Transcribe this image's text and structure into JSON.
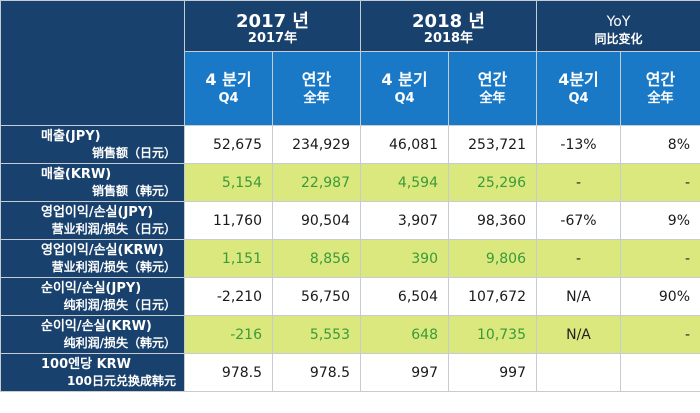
{
  "header": {
    "y2017_kr": "2017 년",
    "y2017_cn": "2017年",
    "y2018_kr": "2018 년",
    "y2018_cn": "2018年",
    "yoy_en": "YoY",
    "yoy_cn": "同比变化",
    "cols": [
      {
        "kr": "4 분기",
        "sub": "Q4"
      },
      {
        "kr": "연간",
        "sub": "全年"
      },
      {
        "kr": "4 분기",
        "sub": "Q4"
      },
      {
        "kr": "연간",
        "sub": "全年"
      },
      {
        "kr": "4분기",
        "sub": "Q4"
      },
      {
        "kr": "연간",
        "sub": "全年"
      }
    ]
  },
  "rows": [
    {
      "kr": "매출(JPY)",
      "cn": "销售额（日元）",
      "cells": [
        "52,675",
        "234,929",
        "46,081",
        "253,721",
        "-13%",
        "8%"
      ]
    },
    {
      "kr": "매출(KRW)",
      "cn": "销售额（韩元）",
      "cells": [
        "5,154",
        "22,987",
        "4,594",
        "25,296",
        "-",
        "-"
      ]
    },
    {
      "kr": "영업이익/손실(JPY)",
      "cn": "营业利润/损失（日元）",
      "cells": [
        "11,760",
        "90,504",
        "3,907",
        "98,360",
        "-67%",
        "9%"
      ]
    },
    {
      "kr": "영업이익/손실(KRW)",
      "cn": "营业利润/损失（韩元）",
      "cells": [
        "1,151",
        "8,856",
        "390",
        "9,806",
        "-",
        "-"
      ]
    },
    {
      "kr": "순이익/손실(JPY)",
      "cn": "纯利润/损失（日元）",
      "cells": [
        "-2,210",
        "56,750",
        "6,504",
        "107,672",
        "N/A",
        "90%"
      ]
    },
    {
      "kr": "순이익/손실(KRW)",
      "cn": "纯利润/损失（韩元）",
      "cells": [
        "-216",
        "5,553",
        "648",
        "10,735",
        "N/A",
        "-"
      ]
    },
    {
      "kr": "100엔당 KRW",
      "cn": "100日元兑换成韩元",
      "cells": [
        "978.5",
        "978.5",
        "997",
        "997",
        "",
        ""
      ]
    }
  ]
}
